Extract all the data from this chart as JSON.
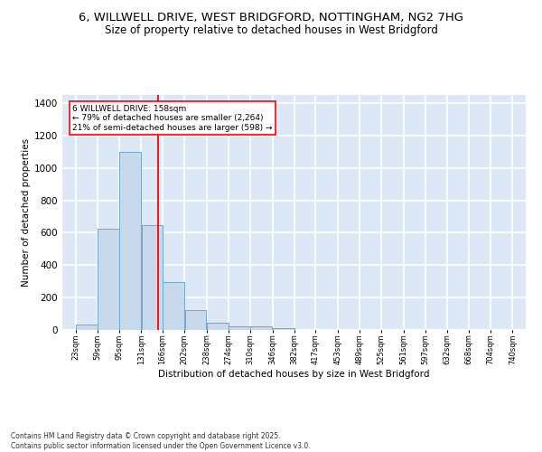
{
  "title_line1": "6, WILLWELL DRIVE, WEST BRIDGFORD, NOTTINGHAM, NG2 7HG",
  "title_line2": "Size of property relative to detached houses in West Bridgford",
  "xlabel": "Distribution of detached houses by size in West Bridgford",
  "ylabel": "Number of detached properties",
  "bar_edges": [
    23,
    59,
    95,
    131,
    166,
    202,
    238,
    274,
    310,
    346,
    382,
    417,
    453,
    489,
    525,
    561,
    597,
    632,
    668,
    704,
    740
  ],
  "bar_heights": [
    35,
    625,
    1100,
    645,
    295,
    125,
    45,
    25,
    20,
    10,
    0,
    0,
    0,
    0,
    0,
    0,
    0,
    0,
    0,
    0
  ],
  "bar_color": "#c9d9ec",
  "bar_edgecolor": "#6fa8d4",
  "vline_x": 158,
  "vline_color": "red",
  "annotation_text": "6 WILLWELL DRIVE: 158sqm\n← 79% of detached houses are smaller (2,264)\n21% of semi-detached houses are larger (598) →",
  "annotation_box_color": "white",
  "annotation_box_edgecolor": "red",
  "ylim": [
    0,
    1450
  ],
  "yticks": [
    0,
    200,
    400,
    600,
    800,
    1000,
    1200,
    1400
  ],
  "tick_labels": [
    "23sqm",
    "59sqm",
    "95sqm",
    "131sqm",
    "166sqm",
    "202sqm",
    "238sqm",
    "274sqm",
    "310sqm",
    "346sqm",
    "382sqm",
    "417sqm",
    "453sqm",
    "489sqm",
    "525sqm",
    "561sqm",
    "597sqm",
    "632sqm",
    "668sqm",
    "704sqm",
    "740sqm"
  ],
  "background_color": "#dce8f5",
  "footer_text": "Contains HM Land Registry data © Crown copyright and database right 2025.\nContains public sector information licensed under the Open Government Licence v3.0.",
  "grid_color": "white",
  "title_fontsize": 9.5,
  "subtitle_fontsize": 8.5
}
